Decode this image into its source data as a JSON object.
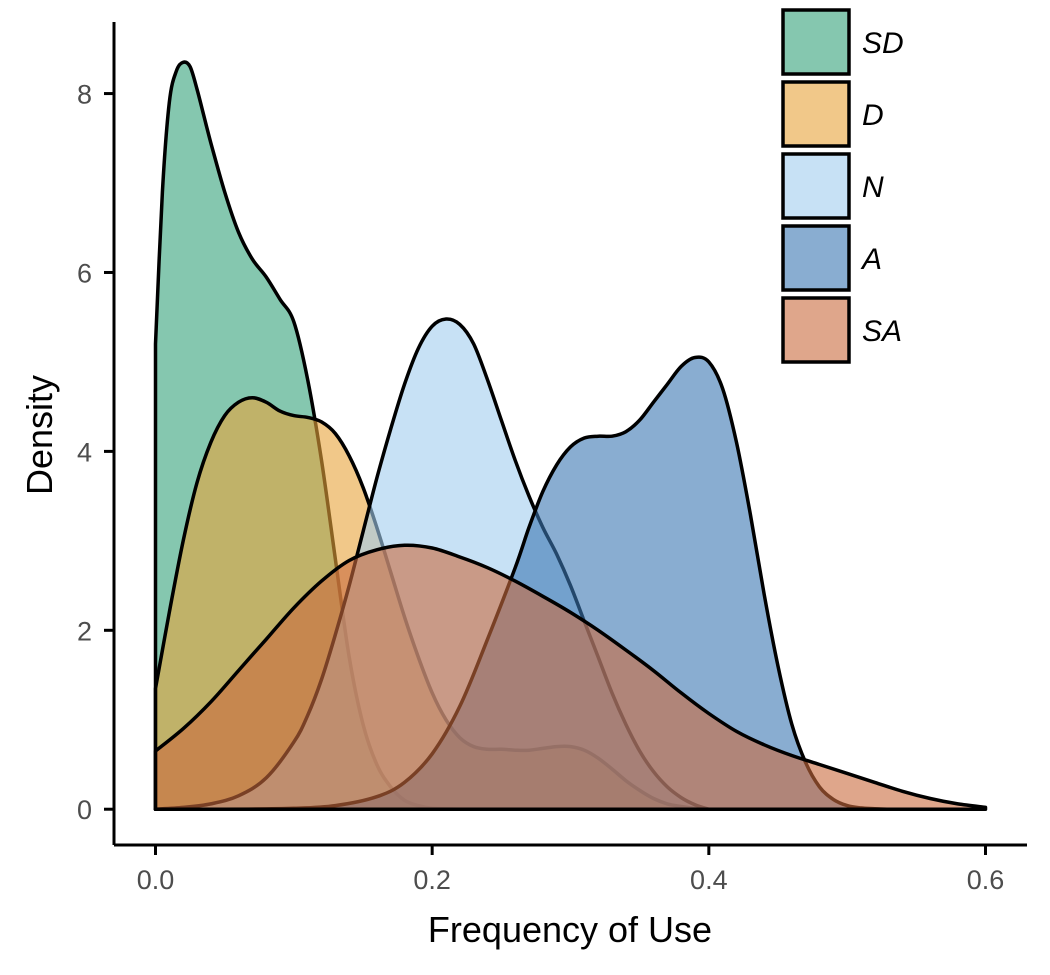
{
  "chart_data": {
    "type": "area",
    "xlabel": "Frequency of Use",
    "ylabel": "Density",
    "xlim": [
      -0.03,
      0.63
    ],
    "ylim": [
      -0.4,
      8.8
    ],
    "x_ticks": [
      "0.0",
      "0.2",
      "0.4",
      "0.6"
    ],
    "x_tick_values": [
      0.0,
      0.2,
      0.4,
      0.6
    ],
    "y_ticks": [
      "0",
      "2",
      "4",
      "6",
      "8"
    ],
    "y_tick_values": [
      0,
      2,
      4,
      6,
      8
    ],
    "grid": false,
    "legend_position": "top-right",
    "fill_opacity": 0.6,
    "series": [
      {
        "name": "SD",
        "color": "#34a17a",
        "x": [
          0.0,
          0.005,
          0.01,
          0.015,
          0.02,
          0.025,
          0.03,
          0.035,
          0.04,
          0.05,
          0.06,
          0.07,
          0.08,
          0.09,
          0.1,
          0.11,
          0.12,
          0.13,
          0.14,
          0.15,
          0.16,
          0.17,
          0.18,
          0.19,
          0.2,
          0.22
        ],
        "y": [
          5.2,
          6.9,
          7.9,
          8.25,
          8.35,
          8.3,
          8.05,
          7.75,
          7.45,
          6.9,
          6.45,
          6.15,
          5.95,
          5.7,
          5.45,
          4.8,
          3.9,
          2.8,
          1.7,
          0.95,
          0.5,
          0.25,
          0.1,
          0.04,
          0.01,
          0.0
        ]
      },
      {
        "name": "D",
        "color": "#e8a33b",
        "x": [
          0.0,
          0.01,
          0.02,
          0.03,
          0.04,
          0.05,
          0.06,
          0.07,
          0.08,
          0.09,
          0.1,
          0.11,
          0.12,
          0.13,
          0.14,
          0.15,
          0.16,
          0.17,
          0.18,
          0.19,
          0.2,
          0.21,
          0.22,
          0.23,
          0.24,
          0.25,
          0.26,
          0.27,
          0.28,
          0.29,
          0.3,
          0.31,
          0.32,
          0.33,
          0.34,
          0.35,
          0.36,
          0.37,
          0.38,
          0.39,
          0.4
        ],
        "y": [
          1.35,
          2.2,
          3.0,
          3.65,
          4.1,
          4.4,
          4.55,
          4.6,
          4.55,
          4.45,
          4.4,
          4.38,
          4.33,
          4.2,
          3.95,
          3.6,
          3.15,
          2.65,
          2.15,
          1.7,
          1.3,
          1.0,
          0.8,
          0.7,
          0.67,
          0.67,
          0.66,
          0.66,
          0.68,
          0.7,
          0.7,
          0.66,
          0.57,
          0.45,
          0.32,
          0.21,
          0.12,
          0.06,
          0.03,
          0.01,
          0.0
        ]
      },
      {
        "name": "N",
        "color": "#a1cdee",
        "x": [
          0.0,
          0.02,
          0.04,
          0.06,
          0.08,
          0.1,
          0.11,
          0.12,
          0.13,
          0.14,
          0.15,
          0.16,
          0.17,
          0.18,
          0.19,
          0.2,
          0.21,
          0.22,
          0.23,
          0.24,
          0.25,
          0.26,
          0.27,
          0.28,
          0.29,
          0.3,
          0.31,
          0.32,
          0.33,
          0.34,
          0.35,
          0.36,
          0.37,
          0.38,
          0.39,
          0.4
        ],
        "y": [
          0.0,
          0.02,
          0.06,
          0.15,
          0.35,
          0.75,
          1.05,
          1.45,
          1.95,
          2.5,
          3.1,
          3.7,
          4.25,
          4.75,
          5.15,
          5.4,
          5.48,
          5.42,
          5.2,
          4.8,
          4.35,
          3.9,
          3.5,
          3.15,
          2.85,
          2.5,
          2.1,
          1.7,
          1.3,
          0.95,
          0.65,
          0.42,
          0.25,
          0.13,
          0.05,
          0.0
        ]
      },
      {
        "name": "A",
        "color": "#3a77b3",
        "x": [
          0.0,
          0.05,
          0.1,
          0.13,
          0.16,
          0.18,
          0.2,
          0.22,
          0.24,
          0.26,
          0.27,
          0.28,
          0.29,
          0.3,
          0.31,
          0.32,
          0.33,
          0.34,
          0.35,
          0.36,
          0.37,
          0.38,
          0.39,
          0.4,
          0.41,
          0.42,
          0.43,
          0.44,
          0.45,
          0.46,
          0.47,
          0.48,
          0.49,
          0.5,
          0.51,
          0.52,
          0.53
        ],
        "y": [
          0.0,
          0.0,
          0.01,
          0.04,
          0.14,
          0.3,
          0.62,
          1.15,
          1.9,
          2.7,
          3.15,
          3.55,
          3.85,
          4.05,
          4.15,
          4.17,
          4.17,
          4.22,
          4.35,
          4.55,
          4.75,
          4.95,
          5.05,
          5.0,
          4.7,
          4.1,
          3.3,
          2.4,
          1.6,
          0.95,
          0.52,
          0.25,
          0.11,
          0.04,
          0.015,
          0.005,
          0.0
        ]
      },
      {
        "name": "SA",
        "color": "#ca6b3e",
        "x": [
          0.0,
          0.02,
          0.04,
          0.06,
          0.08,
          0.1,
          0.12,
          0.14,
          0.16,
          0.18,
          0.2,
          0.22,
          0.24,
          0.26,
          0.28,
          0.3,
          0.32,
          0.34,
          0.36,
          0.38,
          0.4,
          0.42,
          0.44,
          0.46,
          0.48,
          0.5,
          0.52,
          0.54,
          0.56,
          0.58,
          0.6
        ],
        "y": [
          0.65,
          0.9,
          1.2,
          1.55,
          1.9,
          2.25,
          2.55,
          2.78,
          2.9,
          2.95,
          2.92,
          2.82,
          2.7,
          2.55,
          2.38,
          2.2,
          2.0,
          1.78,
          1.55,
          1.3,
          1.07,
          0.87,
          0.72,
          0.6,
          0.5,
          0.4,
          0.3,
          0.2,
          0.12,
          0.06,
          0.02
        ]
      }
    ]
  }
}
